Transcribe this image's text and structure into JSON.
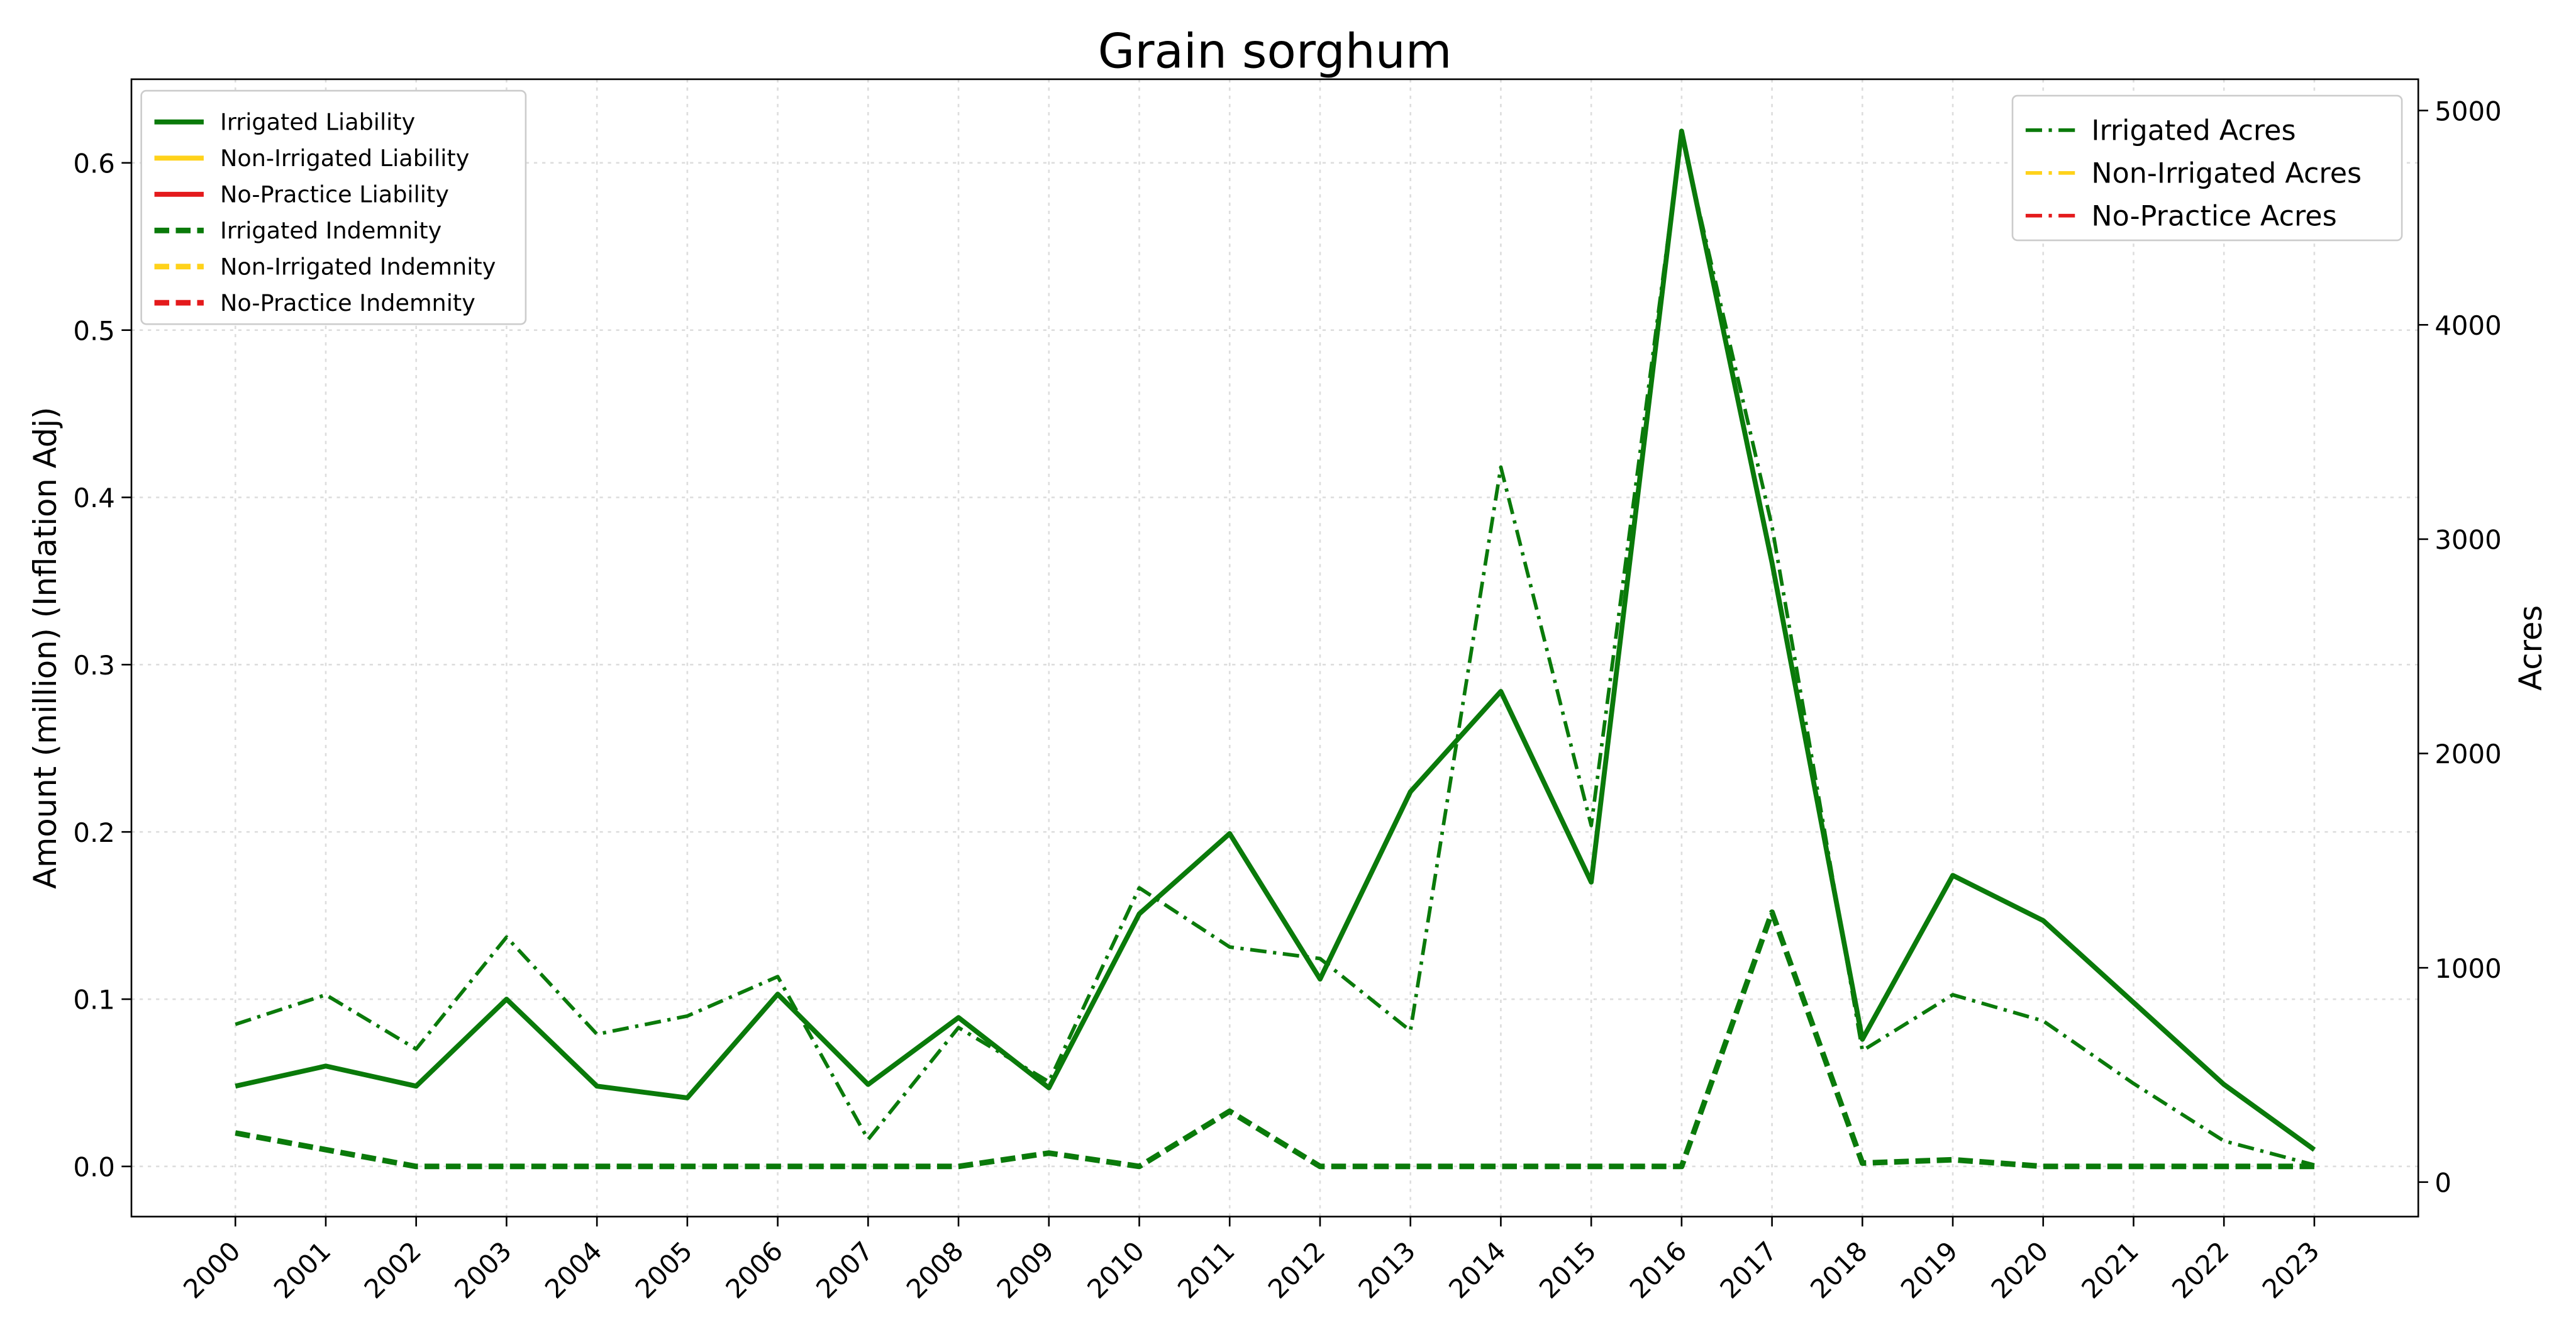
{
  "chart_data": {
    "type": "line",
    "title": "Grain sorghum",
    "ylabel": "Amount (million) (Inflation Adj)",
    "y2label": "Acres",
    "x": [
      2000,
      2001,
      2002,
      2003,
      2004,
      2005,
      2006,
      2007,
      2008,
      2009,
      2010,
      2011,
      2012,
      2013,
      2014,
      2015,
      2016,
      2017,
      2018,
      2019,
      2020,
      2021,
      2022,
      2023
    ],
    "xlim": [
      1998.85,
      2024.15
    ],
    "xticks": [
      2000,
      2001,
      2002,
      2003,
      2004,
      2005,
      2006,
      2007,
      2008,
      2009,
      2010,
      2011,
      2012,
      2013,
      2014,
      2015,
      2016,
      2017,
      2018,
      2019,
      2020,
      2021,
      2022,
      2023
    ],
    "ylim": [
      -0.03,
      0.65
    ],
    "yticks": [
      {
        "value": 0,
        "label": "0.0"
      },
      0.1,
      0.2,
      0.3,
      0.4,
      0.5,
      0.6
    ],
    "y2lim": [
      -161,
      5146
    ],
    "y2ticks": [
      0,
      1000,
      2000,
      3000,
      4000,
      5000
    ],
    "grid": true,
    "legend": "upper left",
    "legend2": "upper right",
    "series": [
      {
        "name": "Irrigated Liability",
        "color": "#0a7a0a",
        "linestyle": "solid",
        "values": [
          0.048,
          0.06,
          0.048,
          0.1,
          0.048,
          0.041,
          0.103,
          0.049,
          0.089,
          0.047,
          0.151,
          0.199,
          0.112,
          0.224,
          0.284,
          0.17,
          0.619,
          0.361,
          0.076,
          0.174,
          0.147,
          0.098,
          0.049,
          0.01
        ]
      },
      {
        "name": "Non-Irrigated Liability",
        "color": "#ffd21a",
        "linestyle": "solid",
        "values": [
          null,
          null,
          null,
          null,
          null,
          null,
          null,
          null,
          null,
          null,
          null,
          null,
          null,
          null,
          null,
          null,
          null,
          null,
          null,
          null,
          null,
          null,
          null,
          null
        ]
      },
      {
        "name": "No-Practice Liability",
        "color": "#e41a1c",
        "linestyle": "solid",
        "values": [
          null,
          null,
          null,
          null,
          null,
          null,
          null,
          null,
          null,
          null,
          null,
          null,
          null,
          null,
          null,
          null,
          null,
          null,
          null,
          null,
          null,
          null,
          null,
          null
        ]
      },
      {
        "name": "Irrigated Indemnity",
        "color": "#0a7a0a",
        "linestyle": "dashed",
        "values": [
          0.02,
          0.01,
          0,
          0,
          0,
          0,
          0,
          0,
          0,
          0.008,
          0,
          0.033,
          0,
          0,
          0,
          0,
          0,
          0.152,
          0.002,
          0.004,
          0,
          0,
          0,
          0
        ]
      },
      {
        "name": "Non-Irrigated Indemnity",
        "color": "#ffd21a",
        "linestyle": "dashed",
        "values": [
          null,
          null,
          null,
          null,
          null,
          null,
          null,
          null,
          null,
          null,
          null,
          null,
          null,
          null,
          null,
          null,
          null,
          null,
          null,
          null,
          null,
          null,
          null,
          null
        ]
      },
      {
        "name": "No-Practice Indemnity",
        "color": "#e41a1c",
        "linestyle": "dashed",
        "values": [
          null,
          null,
          null,
          null,
          null,
          null,
          null,
          null,
          null,
          null,
          null,
          null,
          null,
          null,
          null,
          null,
          null,
          null,
          null,
          null,
          null,
          null,
          null,
          null
        ]
      },
      {
        "name": "Irrigated Acres",
        "color": "#0a7a0a",
        "linestyle": "dashdot",
        "axis": "y2",
        "values": [
          736,
          874,
          621,
          1143,
          690,
          775,
          959,
          199,
          721,
          468,
          1373,
          1097,
          1043,
          706,
          3336,
          1664,
          4885,
          3060,
          613,
          874,
          752,
          460,
          192,
          80
        ]
      },
      {
        "name": "Non-Irrigated Acres",
        "color": "#ffd21a",
        "linestyle": "dashdot",
        "axis": "y2",
        "values": [
          null,
          null,
          null,
          null,
          null,
          null,
          null,
          null,
          null,
          null,
          null,
          null,
          null,
          null,
          null,
          null,
          null,
          null,
          null,
          null,
          null,
          null,
          null,
          null
        ]
      },
      {
        "name": "No-Practice Acres",
        "color": "#e41a1c",
        "linestyle": "dashdot",
        "axis": "y2",
        "values": [
          null,
          null,
          null,
          null,
          null,
          null,
          null,
          null,
          null,
          null,
          null,
          null,
          null,
          null,
          null,
          null,
          null,
          null,
          null,
          null,
          null,
          null,
          null,
          null
        ]
      }
    ]
  }
}
